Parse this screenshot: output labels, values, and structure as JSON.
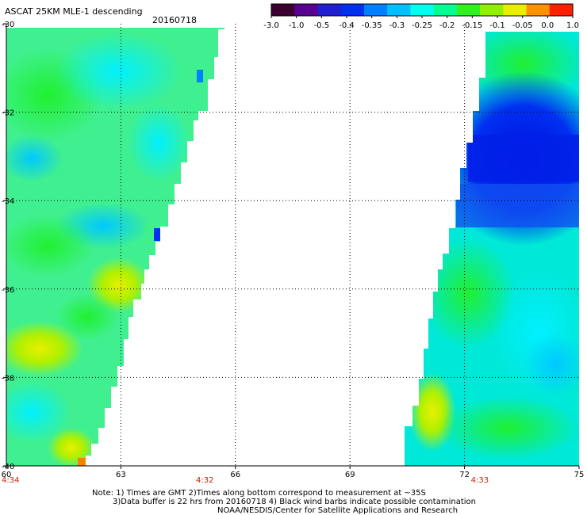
{
  "header": {
    "title": "ASCAT 25KM MLE-1 descending",
    "date": "20160718"
  },
  "colorbar": {
    "labels": [
      "-3.0",
      "-1.0",
      "-0.5",
      "-0.4",
      "-0.35",
      "-0.3",
      "-0.25",
      "-0.2",
      "-0.15",
      "-0.1",
      "-0.05",
      "0.0",
      "1.0"
    ],
    "colors": [
      "#3a0030",
      "#5a0090",
      "#2020d0",
      "#0030f0",
      "#0080ff",
      "#00c0ff",
      "#00ffee",
      "#00ff90",
      "#30f020",
      "#90f000",
      "#e8f000",
      "#ff9000",
      "#ff2000"
    ]
  },
  "map": {
    "lon_range": [
      60,
      75
    ],
    "lat_range": [
      -40,
      -30
    ],
    "lon_ticks": [
      "60",
      "63",
      "66",
      "69",
      "72",
      "75"
    ],
    "lat_ticks": [
      "-30",
      "-32",
      "-34",
      "-36",
      "-38",
      "-40"
    ],
    "grid_lines": "dotted"
  },
  "times": [
    {
      "lon": 60,
      "label": "4:34"
    },
    {
      "lon": 65.2,
      "label": "4:32"
    },
    {
      "lon": 72.4,
      "label": "4:33"
    }
  ],
  "notes": [
    "Note: 1) Times are GMT 2)Times along bottom correspond to measurement at ~35S",
    "3)Data buffer is 22 hrs from 20160718 4) Black wind barbs indicate possible contamination",
    "NOAA/NESDIS/Center for Satellite Applications and Research"
  ]
}
